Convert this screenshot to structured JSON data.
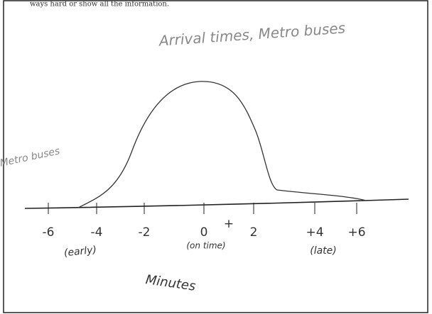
{
  "header": {
    "text": "ways hard or show all the information."
  },
  "sketch": {
    "title": "Arrival times, Metro buses",
    "y_label": "Metro buses",
    "ticks": [
      "-6",
      "-4",
      "-2",
      "0",
      "2",
      "+4",
      "+6"
    ],
    "marker": "+",
    "annotations": [
      "(early)",
      "(on time)",
      "(late)"
    ],
    "x_label": "Minutes"
  }
}
